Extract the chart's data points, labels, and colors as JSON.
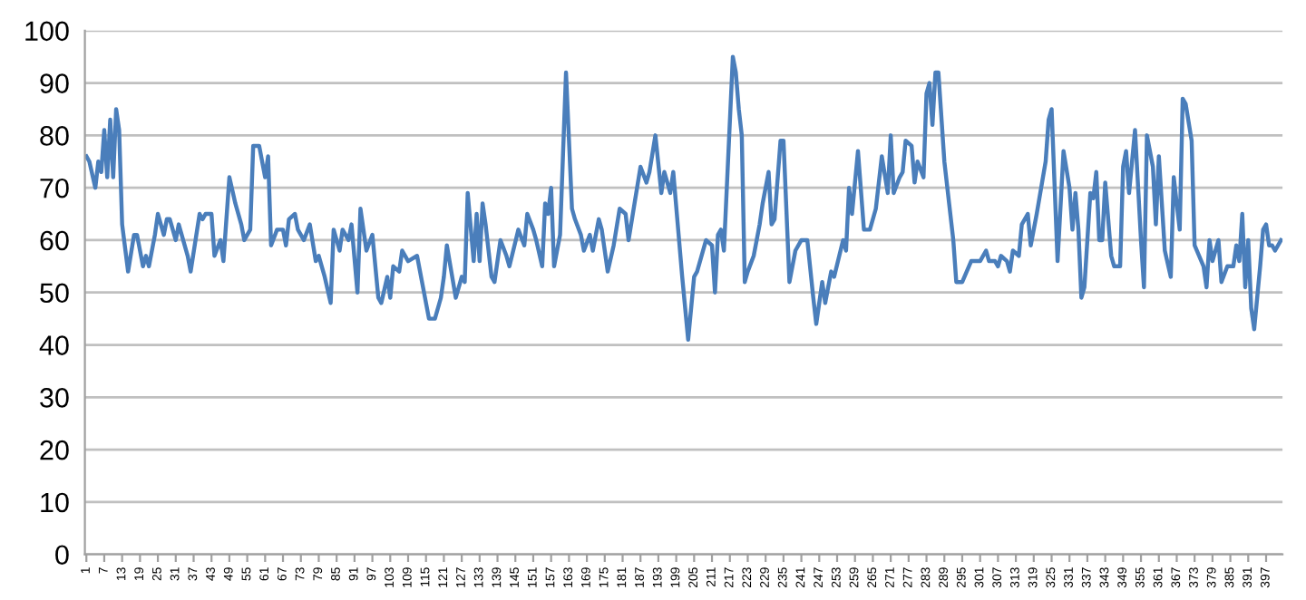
{
  "chart_data": {
    "type": "line",
    "color": "#4a7ebb",
    "line_style": "solid",
    "marker": "none",
    "grid": "y",
    "legend": false,
    "xlim": [
      0.5,
      402.5
    ],
    "xticks": [
      1,
      7,
      13,
      19,
      25,
      31,
      37,
      43,
      49,
      55,
      61,
      67,
      73,
      79,
      85,
      91,
      97,
      103,
      109,
      115,
      121,
      127,
      133,
      139,
      145,
      151,
      157,
      163,
      169,
      175,
      181,
      187,
      193,
      199,
      205,
      211,
      217,
      223,
      229,
      235,
      241,
      247,
      253,
      259,
      265,
      271,
      277,
      283,
      289,
      295,
      301,
      307,
      313,
      319,
      325,
      331,
      337,
      343,
      349,
      355,
      361,
      367,
      373,
      379,
      385,
      391,
      397
    ],
    "ylim": [
      0,
      100
    ],
    "yticks": [
      0,
      10,
      20,
      30,
      40,
      50,
      60,
      70,
      80,
      90,
      100
    ],
    "x": [
      1,
      2,
      4,
      5,
      6,
      7,
      8,
      9,
      10,
      11,
      12,
      13,
      15,
      17,
      18,
      20,
      21,
      22,
      24,
      25,
      27,
      28,
      29,
      31,
      32,
      35,
      36,
      39,
      40,
      41,
      43,
      44,
      46,
      47,
      49,
      51,
      53,
      54,
      56,
      57,
      59,
      61,
      62,
      63,
      65,
      67,
      68,
      69,
      71,
      72,
      73,
      74,
      76,
      78,
      79,
      81,
      83,
      84,
      86,
      87,
      89,
      90,
      92,
      93,
      95,
      97,
      99,
      100,
      102,
      103,
      104,
      106,
      107,
      109,
      112,
      114,
      116,
      118,
      120,
      121,
      122,
      125,
      127,
      128,
      129,
      131,
      132,
      133,
      134,
      135,
      137,
      138,
      140,
      142,
      143,
      146,
      148,
      149,
      151,
      152,
      154,
      155,
      156,
      157,
      158,
      160,
      162,
      164,
      165,
      167,
      168,
      170,
      171,
      173,
      174,
      176,
      178,
      180,
      182,
      183,
      185,
      187,
      189,
      190,
      192,
      194,
      195,
      197,
      198,
      201,
      203,
      205,
      206,
      209,
      211,
      212,
      213,
      214,
      215,
      218,
      219,
      220,
      221,
      222,
      223,
      225,
      227,
      228,
      230,
      231,
      232,
      234,
      235,
      237,
      239,
      241,
      243,
      245,
      246,
      248,
      249,
      251,
      252,
      255,
      256,
      257,
      258,
      260,
      262,
      264,
      266,
      268,
      270,
      271,
      272,
      274,
      275,
      276,
      278,
      279,
      280,
      282,
      283,
      284,
      285,
      286,
      287,
      289,
      290,
      292,
      293,
      295,
      298,
      301,
      303,
      304,
      306,
      307,
      308,
      310,
      311,
      312,
      314,
      315,
      317,
      318,
      320,
      323,
      324,
      325,
      327,
      329,
      331,
      332,
      333,
      334,
      335,
      336,
      338,
      339,
      340,
      341,
      342,
      343,
      345,
      346,
      348,
      349,
      350,
      351,
      353,
      355,
      356,
      357,
      359,
      360,
      361,
      363,
      365,
      366,
      368,
      369,
      370,
      372,
      373,
      376,
      377,
      378,
      379,
      381,
      382,
      384,
      386,
      387,
      388,
      389,
      390,
      391,
      392,
      393,
      395,
      396,
      397,
      398,
      399,
      400,
      402
    ],
    "values": [
      76,
      75,
      70,
      75,
      73,
      81,
      72,
      83,
      72,
      85,
      81,
      63,
      54,
      61,
      61,
      55,
      57,
      55,
      61,
      65,
      61,
      64,
      64,
      60,
      63,
      57,
      54,
      65,
      64,
      65,
      65,
      57,
      60,
      56,
      72,
      67,
      63,
      60,
      62,
      78,
      78,
      72,
      76,
      59,
      62,
      62,
      59,
      64,
      65,
      62,
      61,
      60,
      63,
      56,
      57,
      53,
      48,
      62,
      58,
      62,
      60,
      63,
      50,
      66,
      58,
      61,
      49,
      48,
      53,
      49,
      55,
      54,
      58,
      56,
      57,
      51,
      45,
      45,
      49,
      53,
      59,
      49,
      53,
      52,
      69,
      56,
      65,
      56,
      67,
      63,
      53,
      52,
      60,
      57,
      55,
      62,
      59,
      65,
      62,
      60,
      55,
      67,
      65,
      70,
      55,
      61,
      92,
      66,
      64,
      61,
      58,
      61,
      58,
      64,
      62,
      54,
      59,
      66,
      65,
      60,
      67,
      74,
      71,
      73,
      80,
      69,
      73,
      69,
      73,
      53,
      41,
      53,
      54,
      60,
      59,
      50,
      61,
      62,
      58,
      95,
      92,
      85,
      80,
      52,
      54,
      57,
      63,
      67,
      73,
      63,
      64,
      79,
      79,
      52,
      58,
      60,
      60,
      49,
      44,
      52,
      48,
      54,
      53,
      60,
      58,
      70,
      65,
      77,
      62,
      62,
      66,
      76,
      69,
      80,
      69,
      72,
      73,
      79,
      78,
      71,
      75,
      72,
      88,
      90,
      82,
      92,
      92,
      75,
      70,
      60,
      52,
      52,
      56,
      56,
      58,
      56,
      56,
      55,
      57,
      56,
      54,
      58,
      57,
      63,
      65,
      59,
      65,
      75,
      83,
      85,
      56,
      77,
      70,
      62,
      69,
      62,
      49,
      51,
      69,
      68,
      73,
      60,
      60,
      71,
      57,
      55,
      55,
      74,
      77,
      69,
      81,
      60,
      51,
      80,
      74,
      63,
      76,
      58,
      53,
      72,
      62,
      87,
      86,
      79,
      59,
      55,
      51,
      60,
      56,
      60,
      52,
      55,
      55,
      59,
      56,
      65,
      51,
      60,
      47,
      43,
      55,
      62,
      63,
      59,
      59,
      58,
      60
    ]
  }
}
